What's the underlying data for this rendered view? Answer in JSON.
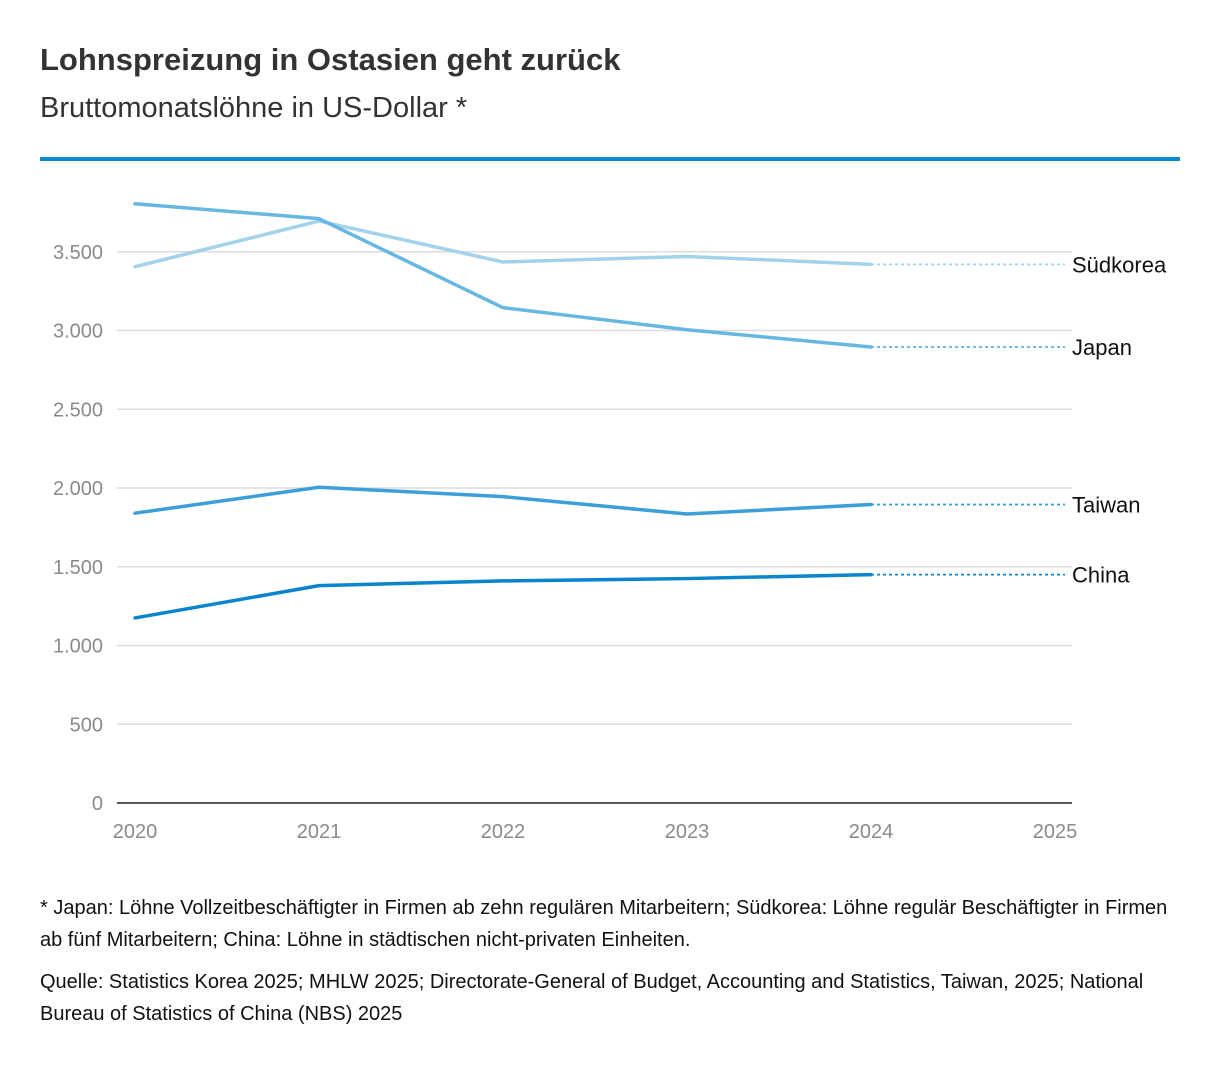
{
  "colors": {
    "accent": "#0a88d0",
    "suedkorea": "#a3d3ec",
    "japan": "#67b7e3",
    "taiwan": "#3c9fda",
    "china": "#0a84cd",
    "grid": "#dcdcdc",
    "axis": "#222222",
    "tick_text": "#8a8a8a"
  },
  "chart_data": {
    "type": "line",
    "title": "Lohnspreizung in Ostasien geht zurück",
    "subtitle": "Bruttomonatslöhne in US-Dollar *",
    "xlabel": "",
    "ylabel": "",
    "x": [
      2020,
      2021,
      2022,
      2023,
      2024
    ],
    "xlim": [
      2020,
      2025
    ],
    "ylim": [
      0,
      4000
    ],
    "x_ticks": [
      "2020",
      "2021",
      "2022",
      "2023",
      "2024",
      "2025"
    ],
    "y_ticks": [
      {
        "value": 0,
        "label": "0"
      },
      {
        "value": 500,
        "label": "500"
      },
      {
        "value": 1000,
        "label": "1.000"
      },
      {
        "value": 1500,
        "label": "1.500"
      },
      {
        "value": 2000,
        "label": "2.000"
      },
      {
        "value": 2500,
        "label": "2.500"
      },
      {
        "value": 3000,
        "label": "3.000"
      },
      {
        "value": 3500,
        "label": "3.500"
      }
    ],
    "grid": true,
    "series": [
      {
        "name": "Südkorea",
        "key": "suedkorea",
        "values": [
          3405,
          3695,
          3435,
          3470,
          3420
        ]
      },
      {
        "name": "Japan",
        "key": "japan",
        "values": [
          3805,
          3710,
          3145,
          3005,
          2895
        ]
      },
      {
        "name": "Taiwan",
        "key": "taiwan",
        "values": [
          1840,
          2005,
          1945,
          1835,
          1895
        ]
      },
      {
        "name": "China",
        "key": "china",
        "values": [
          1175,
          1380,
          1410,
          1425,
          1450
        ]
      }
    ]
  },
  "footnote": "* Japan: Löhne Vollzeitbeschäftigter in Firmen ab zehn regulären Mitarbeitern; Südkorea: Löhne regulär Beschäftigter in Firmen ab fünf Mitarbeitern; China: Löhne in städtischen nicht-privaten Einheiten.",
  "source": "Quelle: Statistics Korea 2025; MHLW 2025; Directorate-General of Budget, Accounting and Statistics, Taiwan, 2025; National Bureau of Statistics of China (NBS) 2025"
}
